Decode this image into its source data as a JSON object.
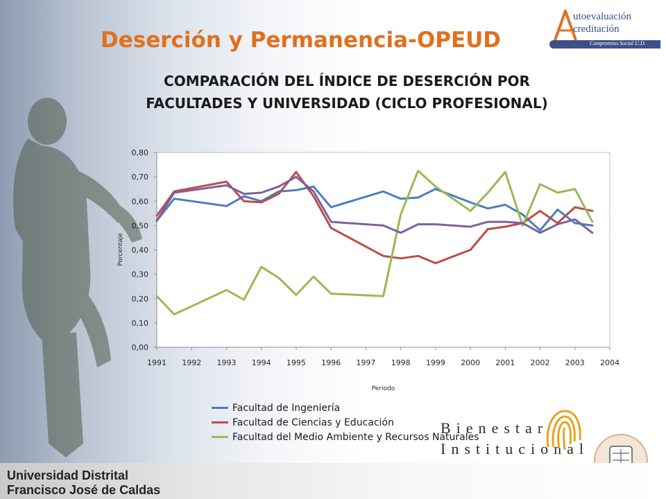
{
  "slide": {
    "title": "Deserción y Permanencia-OPEUD",
    "chart_title_line1": "COMPARACIÓN DEL ÍNDICE DE DESERCIÓN POR",
    "chart_title_line2": "FACULTADES Y UNIVERSIDAD (CICLO PROFESIONAL)"
  },
  "top_logo": {
    "line1": "utoevaluación",
    "line2": "creditación",
    "tagline": "Compromiso Social U.D.",
    "letter_color": "#e0701d"
  },
  "bienestar": {
    "line1": "Bienestar",
    "line2": "Institucional"
  },
  "university": {
    "line1": "Universidad Distrital",
    "line2": "Francisco José de Caldas"
  },
  "colors": {
    "title": "#e0701d"
  },
  "chart_data": {
    "type": "line",
    "xlabel": "Periodo",
    "ylabel": "Porcentaje",
    "ylim": [
      0,
      0.8
    ],
    "xlim": [
      1991,
      2004
    ],
    "x_ticks": [
      "1991",
      "1992",
      "1993",
      "1994",
      "1995",
      "1996",
      "1997",
      "1998",
      "1999",
      "2000",
      "2001",
      "2002",
      "2003",
      "2004"
    ],
    "y_ticks": [
      "0,00",
      "0,10",
      "0,20",
      "0,30",
      "0,40",
      "0,50",
      "0,60",
      "0,70",
      "0,80"
    ],
    "grid": false,
    "legend_position": "bottom",
    "x": [
      1991,
      1991.5,
      1993,
      1993.5,
      1994,
      1994.5,
      1995,
      1995.5,
      1996,
      1997.5,
      1998,
      1998.5,
      1999,
      2000,
      2000.5,
      2001,
      2001.5,
      2002,
      2002.5,
      2003,
      2003.5
    ],
    "series": [
      {
        "name": "Facultad de Ingeniería",
        "color": "#4a7ebb",
        "values": [
          0.52,
          0.61,
          0.58,
          0.62,
          0.6,
          0.64,
          0.645,
          0.66,
          0.575,
          0.64,
          0.61,
          0.615,
          0.65,
          0.595,
          0.57,
          0.585,
          0.545,
          0.48,
          0.565,
          0.51,
          0.5
        ]
      },
      {
        "name": "Facultad de Ciencias y Educación",
        "color": "#be4b48",
        "values": [
          0.54,
          0.64,
          0.68,
          0.6,
          0.595,
          0.63,
          0.72,
          0.62,
          0.49,
          0.375,
          0.365,
          0.375,
          0.345,
          0.4,
          0.485,
          0.495,
          0.51,
          0.56,
          0.51,
          0.575,
          0.56
        ]
      },
      {
        "name": "Facultad del Medio Ambiente y Recursos Naturales",
        "color": "#98b954",
        "values": [
          0.21,
          0.135,
          0.235,
          0.195,
          0.33,
          0.285,
          0.215,
          0.29,
          0.22,
          0.21,
          0.545,
          0.725,
          0.66,
          0.56,
          0.635,
          0.72,
          0.5,
          0.67,
          0.635,
          0.65,
          0.515
        ]
      },
      {
        "name": "",
        "color": "#7d60a0",
        "values": [
          0.52,
          0.635,
          0.665,
          0.63,
          0.635,
          0.66,
          0.7,
          0.64,
          0.515,
          0.5,
          0.47,
          0.505,
          0.505,
          0.495,
          0.515,
          0.515,
          0.51,
          0.47,
          0.505,
          0.525,
          0.47
        ]
      }
    ]
  }
}
